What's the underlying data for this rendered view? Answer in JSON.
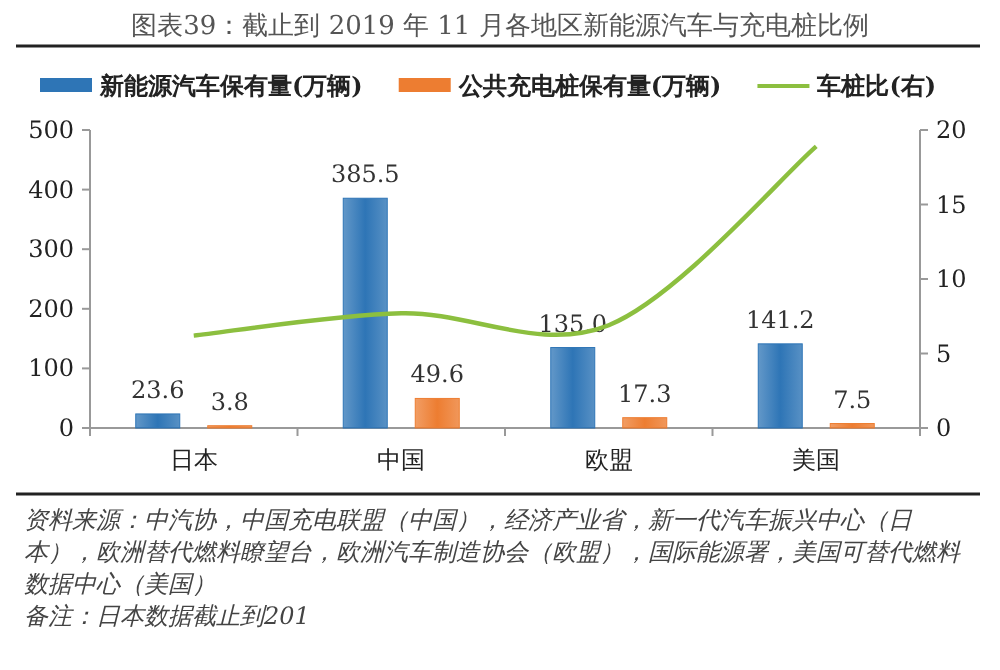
{
  "chart_data": {
    "type": "bar",
    "title": "图表39：截止到 2019 年 11 月各地区新能源汽车与充电桩比例",
    "categories": [
      "日本",
      "中国",
      "欧盟",
      "美国"
    ],
    "series": [
      {
        "name": "新能源汽车保有量(万辆)",
        "color": "#2e75b6",
        "values": [
          23.6,
          385.5,
          135.0,
          141.2
        ],
        "value_labels": [
          "23.6",
          "385.5",
          "135.0",
          "141.2"
        ]
      },
      {
        "name": "公共充电桩保有量(万辆)",
        "color": "#ed7d31",
        "values": [
          3.8,
          49.6,
          17.3,
          7.5
        ],
        "value_labels": [
          "3.8",
          "49.6",
          "17.3",
          "7.5"
        ]
      },
      {
        "name": "车桩比(右)",
        "type": "line",
        "axis": "y2",
        "color": "#8cbf3f",
        "values": [
          6.2,
          7.7,
          6.9,
          18.9
        ]
      }
    ],
    "ylim": [
      0,
      500
    ],
    "yticks": [
      0,
      100,
      200,
      300,
      400,
      500
    ],
    "y2lim": [
      0,
      20
    ],
    "y2ticks": [
      0,
      5,
      10,
      15,
      20
    ],
    "legend": "top",
    "grid": false,
    "annotations": [
      "资料来源：中汽协，中国充电联盟（中国），经济产业省，新一代汽车振兴中心（日本），欧洲替代燃料瞭望台，欧洲汽车制造协会（欧盟），国际能源署，美国可替代燃料数据中心（美国）",
      "备注：日本数据截止到201"
    ]
  }
}
